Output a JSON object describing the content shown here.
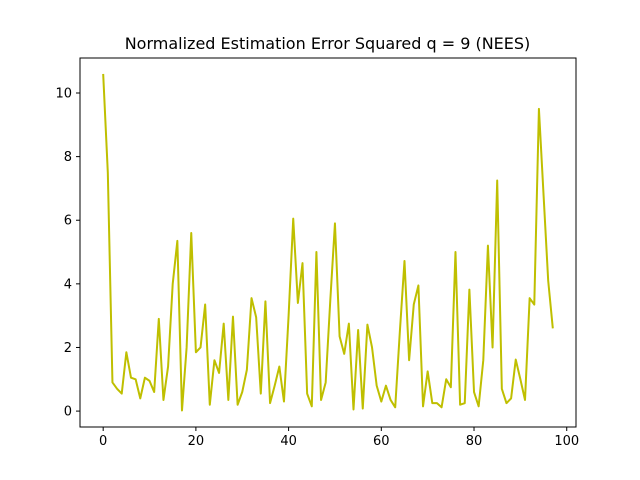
{
  "chart_data": {
    "type": "line",
    "title": "Normalized Estimation Error Squared q = 9 (NEES)",
    "xlabel": "",
    "ylabel": "",
    "xlim": [
      -5,
      102
    ],
    "ylim": [
      -0.5,
      11.1
    ],
    "xticks": [
      0,
      20,
      40,
      60,
      80,
      100
    ],
    "yticks": [
      0,
      2,
      4,
      6,
      8,
      10
    ],
    "grid": false,
    "series": [
      {
        "color": "#bfbf00",
        "x": [
          0,
          1,
          2,
          3,
          4,
          5,
          6,
          7,
          8,
          9,
          10,
          11,
          12,
          13,
          14,
          15,
          16,
          17,
          18,
          19,
          20,
          21,
          22,
          23,
          24,
          25,
          26,
          27,
          28,
          29,
          30,
          31,
          32,
          33,
          34,
          35,
          36,
          37,
          38,
          39,
          40,
          41,
          42,
          43,
          44,
          45,
          46,
          47,
          48,
          49,
          50,
          51,
          52,
          53,
          54,
          55,
          56,
          57,
          58,
          59,
          60,
          61,
          62,
          63,
          64,
          65,
          66,
          67,
          68,
          69,
          70,
          71,
          72,
          73,
          74,
          75,
          76,
          77,
          78,
          79,
          80,
          81,
          82,
          83,
          84,
          85,
          86,
          87,
          88,
          89,
          90,
          91,
          92,
          93,
          94,
          95,
          96,
          97
        ],
        "y": [
          10.6,
          7.5,
          0.9,
          0.7,
          0.55,
          1.85,
          1.05,
          1.0,
          0.4,
          1.05,
          0.95,
          0.6,
          2.9,
          0.35,
          1.4,
          4.0,
          5.35,
          0.02,
          2.0,
          5.6,
          1.85,
          2.0,
          3.35,
          0.2,
          1.6,
          1.2,
          2.75,
          0.35,
          2.97,
          0.2,
          0.6,
          1.3,
          3.55,
          2.95,
          0.55,
          3.45,
          0.25,
          0.8,
          1.4,
          0.3,
          3.0,
          6.05,
          3.4,
          4.65,
          0.55,
          0.15,
          5.0,
          0.35,
          0.9,
          3.5,
          5.9,
          2.35,
          1.8,
          2.75,
          0.05,
          2.55,
          0.08,
          2.72,
          2.0,
          0.8,
          0.3,
          0.8,
          0.35,
          0.12,
          2.5,
          4.72,
          1.6,
          3.35,
          3.95,
          0.15,
          1.25,
          0.25,
          0.25,
          0.12,
          1.0,
          0.75,
          5.0,
          0.2,
          0.25,
          3.82,
          0.6,
          0.15,
          1.6,
          5.2,
          2.0,
          7.25,
          0.7,
          0.25,
          0.4,
          1.62,
          1.0,
          0.35,
          3.55,
          3.35,
          9.5,
          6.8,
          4.1,
          2.6
        ]
      }
    ]
  }
}
